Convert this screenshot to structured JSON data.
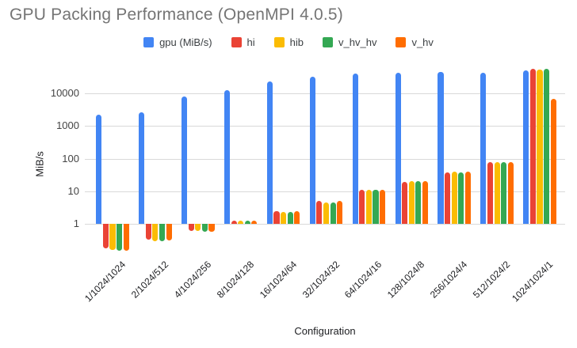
{
  "title": "GPU Packing Performance (OpenMPI 4.0.5)",
  "chart_data": {
    "type": "bar",
    "title": "GPU Packing Performance (OpenMPI 4.0.5)",
    "xlabel": "Configuration",
    "ylabel": "MiB/s",
    "y_scale": "log",
    "y_ticks": [
      1,
      10,
      100,
      1000,
      10000
    ],
    "ylim": [
      0.13,
      60000
    ],
    "baseline": 1,
    "grid": true,
    "legend_position": "top",
    "categories": [
      "1/1024/1024",
      "2/1024/512",
      "4/1024/256",
      "8/1024/128",
      "16/1024/64",
      "32/1024/32",
      "64/1024/16",
      "128/1024/8",
      "256/1024/4",
      "512/1024/2",
      "1024/1024/1"
    ],
    "series": [
      {
        "name": "gpu (MiB/s)",
        "color": "#4285F4",
        "values": [
          2200,
          2600,
          8000,
          12500,
          23000,
          32000,
          40000,
          42000,
          46000,
          44000,
          52000
        ]
      },
      {
        "name": "hi",
        "color": "#EA4335",
        "values": [
          0.18,
          0.33,
          0.62,
          1.25,
          2.4,
          5.0,
          11,
          19.5,
          38,
          78,
          56000
        ]
      },
      {
        "name": "hib",
        "color": "#FBBC04",
        "values": [
          0.16,
          0.3,
          0.6,
          1.25,
          2.3,
          4.6,
          10.8,
          20,
          39,
          79,
          53000
        ]
      },
      {
        "name": "v_hv_hv",
        "color": "#34A853",
        "values": [
          0.15,
          0.29,
          0.57,
          1.22,
          2.3,
          4.5,
          10.8,
          20,
          38.5,
          78,
          57000
        ]
      },
      {
        "name": "v_hv",
        "color": "#FF6D01",
        "values": [
          0.15,
          0.31,
          0.58,
          1.25,
          2.4,
          5.0,
          11,
          20,
          39.5,
          79,
          6800
        ]
      }
    ]
  }
}
